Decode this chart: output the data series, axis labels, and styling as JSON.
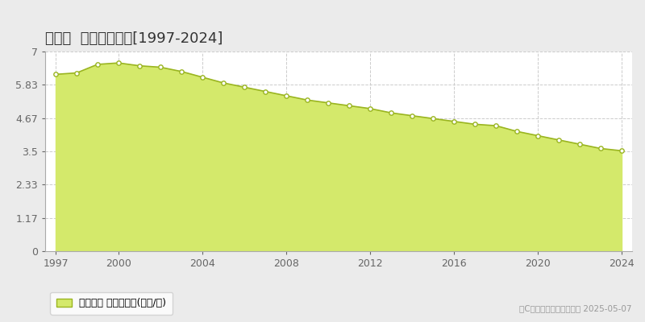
{
  "title": "昭和村  基準地価推移[1997-2024]",
  "years": [
    1997,
    1998,
    1999,
    2000,
    2001,
    2002,
    2003,
    2004,
    2005,
    2006,
    2007,
    2008,
    2009,
    2010,
    2011,
    2012,
    2013,
    2014,
    2015,
    2016,
    2017,
    2018,
    2019,
    2020,
    2021,
    2022,
    2023,
    2024
  ],
  "values": [
    6.2,
    6.25,
    6.55,
    6.6,
    6.5,
    6.45,
    6.3,
    6.1,
    5.9,
    5.75,
    5.6,
    5.45,
    5.3,
    5.2,
    5.1,
    5.0,
    4.85,
    4.75,
    4.65,
    4.55,
    4.45,
    4.4,
    4.2,
    4.05,
    3.9,
    3.75,
    3.6,
    3.52
  ],
  "yticks": [
    0,
    1.17,
    2.33,
    3.5,
    4.67,
    5.83,
    7
  ],
  "xticks": [
    1997,
    2000,
    2004,
    2008,
    2012,
    2016,
    2020,
    2024
  ],
  "ylim": [
    0,
    7
  ],
  "xlim_min": 1996.5,
  "xlim_max": 2024.5,
  "fill_color": "#d4e96b",
  "line_color": "#9ab520",
  "marker_face_color": "#ffffff",
  "marker_edge_color": "#9ab520",
  "bg_color": "#ebebeb",
  "plot_bg_color": "#ffffff",
  "grid_color": "#cccccc",
  "title_fontsize": 13,
  "tick_fontsize": 9,
  "legend_label": "基準地価 平均坪単価(万円/坪)",
  "copyright_text": "（C）土地価格ドットコム 2025-05-07"
}
